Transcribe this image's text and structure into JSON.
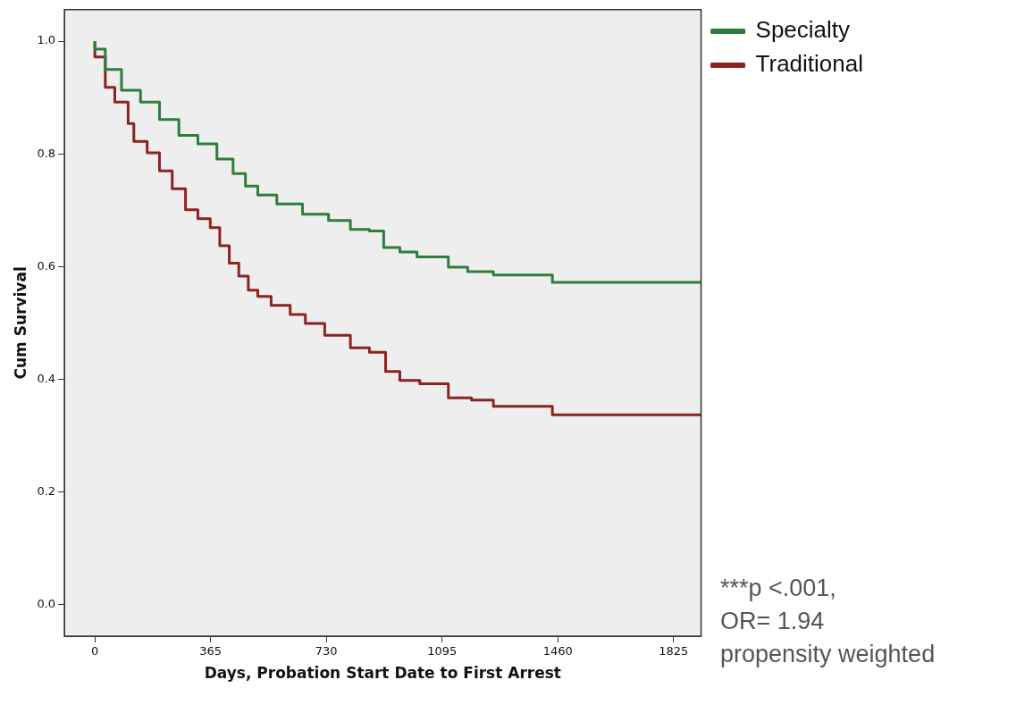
{
  "chart_data": {
    "type": "step",
    "xlabel": "Days, Probation Start Date to First Arrest",
    "ylabel": "Cum Survival",
    "xlim": [
      -96,
      1912
    ],
    "xticks": [
      0,
      365,
      730,
      1095,
      1460,
      1825
    ],
    "ylim": [
      -0.056,
      1.056
    ],
    "yticks": [
      {
        "value": 0,
        "label": "0.0"
      },
      {
        "value": 0.2,
        "label": "0.2"
      },
      {
        "value": 0.4,
        "label": "0.4"
      },
      {
        "value": 0.6,
        "label": "0.6"
      },
      {
        "value": 0.8,
        "label": "0.8"
      },
      {
        "value": 1,
        "label": "1.0"
      }
    ],
    "grid": false,
    "legend": "top right",
    "marker": "none",
    "line_style": "solid",
    "series": [
      {
        "name": "Specialty",
        "color": "#2e7d3e",
        "x": [
          0,
          33,
          84,
          144,
          204,
          265,
          325,
          385,
          436,
          475,
          514,
          574,
          655,
          737,
          806,
          866,
          911,
          962,
          1016,
          1115,
          1176,
          1257,
          1293,
          1443,
          1445,
          1912
        ],
        "values": [
          1.0,
          0.986,
          0.95,
          0.913,
          0.892,
          0.861,
          0.833,
          0.818,
          0.791,
          0.765,
          0.743,
          0.727,
          0.711,
          0.693,
          0.682,
          0.666,
          0.663,
          0.634,
          0.626,
          0.617,
          0.599,
          0.591,
          0.585,
          0.585,
          0.572,
          0.572
        ]
      },
      {
        "name": "Traditional",
        "color": "#8b2323",
        "x": [
          0,
          33,
          63,
          105,
          123,
          165,
          204,
          244,
          286,
          325,
          364,
          394,
          424,
          454,
          484,
          514,
          556,
          616,
          664,
          725,
          806,
          866,
          917,
          962,
          1025,
          1115,
          1188,
          1257,
          1293,
          1443,
          1445,
          1912
        ],
        "values": [
          1.0,
          0.972,
          0.918,
          0.892,
          0.854,
          0.822,
          0.802,
          0.77,
          0.738,
          0.701,
          0.685,
          0.669,
          0.637,
          0.606,
          0.583,
          0.558,
          0.547,
          0.531,
          0.515,
          0.499,
          0.478,
          0.456,
          0.448,
          0.414,
          0.398,
          0.392,
          0.367,
          0.363,
          0.352,
          0.352,
          0.337,
          0.337
        ]
      }
    ],
    "annotations": [
      "***p <.001,",
      "OR= 1.94",
      "propensity weighted"
    ]
  }
}
